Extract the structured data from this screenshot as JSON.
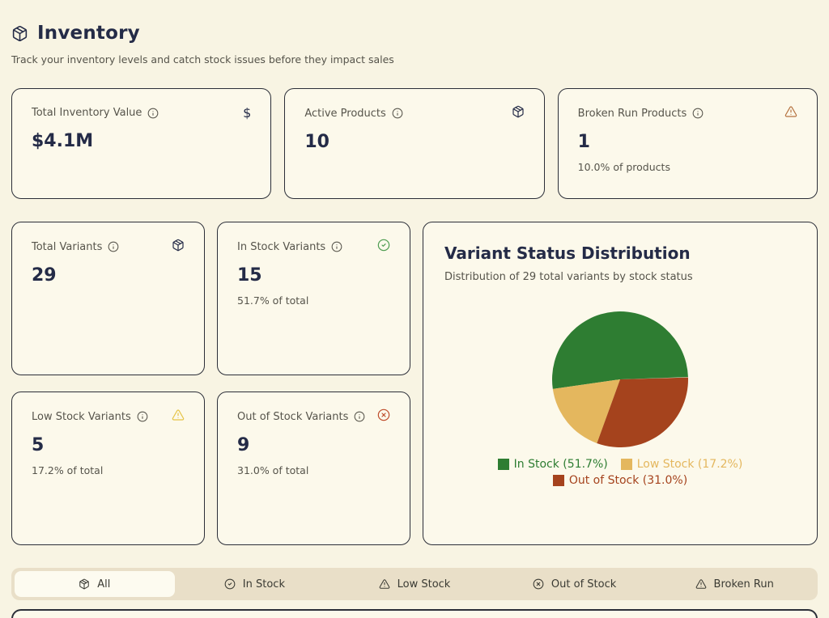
{
  "page": {
    "title": "Inventory",
    "subtitle": "Track your inventory levels and catch stock issues before they impact sales",
    "title_icon": "package-icon"
  },
  "colors": {
    "background": "#f8f4e3",
    "card_background": "#fcf9eb",
    "border": "#2b2e38",
    "heading": "#242b47",
    "muted_text": "#56544b",
    "in_stock_green": "#2e7d32",
    "low_stock_gold": "#e4b75e",
    "out_of_stock_rust": "#a5431d",
    "warning_orange": "#b5723f",
    "warning_yellow": "#e5c345",
    "check_green": "#4d9c50",
    "x_red": "#bf4d2c",
    "tabbar_background": "#e9dfc8",
    "active_tab_background": "#fdfbf0"
  },
  "stat_cards": [
    {
      "label": "Total Inventory Value",
      "info_icon": "info-icon",
      "corner_icon": "dollar-icon",
      "corner_glyph": "$",
      "value": "$4.1M",
      "sub": ""
    },
    {
      "label": "Active Products",
      "info_icon": "info-icon",
      "corner_icon": "package-icon",
      "value": "10",
      "sub": ""
    },
    {
      "label": "Broken Run Products",
      "info_icon": "info-icon",
      "corner_icon": "alert-triangle-icon",
      "value": "1",
      "sub": "10.0% of products"
    },
    {
      "label": "Total Variants",
      "info_icon": "info-icon",
      "corner_icon": "package-icon",
      "value": "29",
      "sub": ""
    },
    {
      "label": "In Stock Variants",
      "info_icon": "info-icon",
      "corner_icon": "check-circle-icon",
      "value": "15",
      "sub": "51.7% of total"
    },
    {
      "label": "Low Stock Variants",
      "info_icon": "info-icon",
      "corner_icon": "alert-triangle-icon",
      "value": "5",
      "sub": "17.2% of total"
    },
    {
      "label": "Out of Stock Variants",
      "info_icon": "info-icon",
      "corner_icon": "x-circle-icon",
      "value": "9",
      "sub": "31.0% of total"
    }
  ],
  "chart_data": {
    "type": "pie",
    "title": "Variant Status Distribution",
    "subtitle": "Distribution of 29 total variants by stock status",
    "total_variants": 29,
    "slices": [
      {
        "label": "In Stock",
        "value": 15,
        "percent": 51.7,
        "color": "#2e7d32"
      },
      {
        "label": "Low Stock",
        "value": 5,
        "percent": 17.2,
        "color": "#e4b75e"
      },
      {
        "label": "Out of Stock",
        "value": 9,
        "percent": 31.0,
        "color": "#a5431d"
      }
    ],
    "legend": [
      "In Stock (51.7%)",
      "Low Stock (17.2%)",
      "Out of Stock (31.0%)"
    ],
    "legend_position": "bottom",
    "start_angle_deg": 2,
    "direction": "counterclockwise"
  },
  "tabs": {
    "active_index": 0,
    "items": [
      {
        "label": "All",
        "icon": "package-icon"
      },
      {
        "label": "In Stock",
        "icon": "check-circle-icon"
      },
      {
        "label": "Low Stock",
        "icon": "alert-triangle-icon"
      },
      {
        "label": "Out of Stock",
        "icon": "x-circle-icon"
      },
      {
        "label": "Broken Run",
        "icon": "alert-triangle-icon"
      }
    ]
  }
}
